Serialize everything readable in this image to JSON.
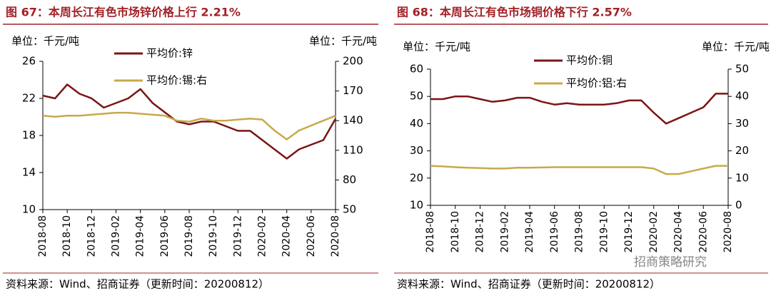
{
  "chart_data": [
    {
      "type": "line",
      "title": "图 67：本周长江有色市场锌价格上行 2.21%",
      "unit_left": "单位：千元/吨",
      "unit_right": "单位：千元/吨",
      "x": [
        "2018-08",
        "2018-09",
        "2018-10",
        "2018-11",
        "2018-12",
        "2019-01",
        "2019-02",
        "2019-03",
        "2019-04",
        "2019-05",
        "2019-06",
        "2019-07",
        "2019-08",
        "2019-09",
        "2019-10",
        "2019-11",
        "2019-12",
        "2020-01",
        "2020-02",
        "2020-03",
        "2020-04",
        "2020-05",
        "2020-06",
        "2020-07",
        "2020-08"
      ],
      "xticks": [
        "2018-08",
        "2018-10",
        "2018-12",
        "2019-02",
        "2019-04",
        "2019-06",
        "2019-08",
        "2019-10",
        "2019-12",
        "2020-02",
        "2020-04",
        "2020-06",
        "2020-08"
      ],
      "ylim": [
        10,
        26
      ],
      "yticks": [
        10,
        14,
        18,
        22,
        26
      ],
      "y2lim": [
        50,
        200
      ],
      "y2ticks": [
        50,
        80,
        110,
        140,
        170,
        200
      ],
      "series": [
        {
          "name": "平均价:锌",
          "color": "#7b1416",
          "values": [
            22.3,
            22.0,
            23.5,
            22.5,
            22.0,
            21.0,
            21.5,
            22.0,
            23.0,
            21.5,
            20.5,
            19.5,
            19.2,
            19.5,
            19.5,
            19.0,
            18.5,
            18.5,
            17.5,
            16.5,
            15.5,
            16.5,
            17.0,
            17.5,
            19.8
          ]
        },
        {
          "name": "平均价:锡:右",
          "color": "#c8a94a",
          "axis": "y2",
          "values": [
            145,
            144,
            145,
            145,
            146,
            147,
            148,
            148,
            147,
            146,
            145,
            140,
            139,
            142,
            140,
            140,
            141,
            142,
            141,
            130,
            121,
            130,
            135,
            140,
            145
          ]
        }
      ]
    },
    {
      "type": "line",
      "title": "图 68：本周长江有色市场铜价格下行 2.57%",
      "unit_left": "单位：千元/吨",
      "unit_right": "单位：千元/吨",
      "x": [
        "2018-08",
        "2018-09",
        "2018-10",
        "2018-11",
        "2018-12",
        "2019-01",
        "2019-02",
        "2019-03",
        "2019-04",
        "2019-05",
        "2019-06",
        "2019-07",
        "2019-08",
        "2019-09",
        "2019-10",
        "2019-11",
        "2019-12",
        "2020-01",
        "2020-02",
        "2020-03",
        "2020-04",
        "2020-05",
        "2020-06",
        "2020-07",
        "2020-08"
      ],
      "xticks": [
        "2018-08",
        "2018-10",
        "2018-12",
        "2019-02",
        "2019-04",
        "2019-06",
        "2019-08",
        "2019-10",
        "2019-12",
        "2020-02",
        "2020-04",
        "2020-06",
        "2020-08"
      ],
      "ylim": [
        10,
        60
      ],
      "yticks": [
        10,
        20,
        30,
        40,
        50,
        60
      ],
      "y2lim": [
        0,
        50
      ],
      "y2ticks": [
        0,
        10,
        20,
        30,
        40,
        50
      ],
      "series": [
        {
          "name": "平均价:铜",
          "color": "#7b1416",
          "values": [
            49,
            49,
            50,
            50,
            49,
            48,
            48.5,
            49.5,
            49.5,
            48,
            47,
            47.5,
            47,
            47,
            47,
            47.5,
            48.5,
            48.5,
            44,
            40,
            42,
            44,
            46,
            51,
            51
          ]
        },
        {
          "name": "平均价:铝:右",
          "color": "#c8a94a",
          "axis": "y2",
          "values": [
            14.5,
            14.3,
            14,
            13.8,
            13.7,
            13.5,
            13.5,
            13.8,
            13.8,
            13.9,
            14,
            14,
            14,
            14,
            14,
            14,
            14,
            14,
            13.5,
            11.5,
            11.5,
            12.5,
            13.5,
            14.5,
            14.5
          ]
        }
      ]
    }
  ],
  "source_left": "资料来源：Wind、招商证券（更新时间：20200812）",
  "source_right": "资料来源：Wind、招商证券（更新时间：20200812）",
  "watermark": "招商策略研究"
}
